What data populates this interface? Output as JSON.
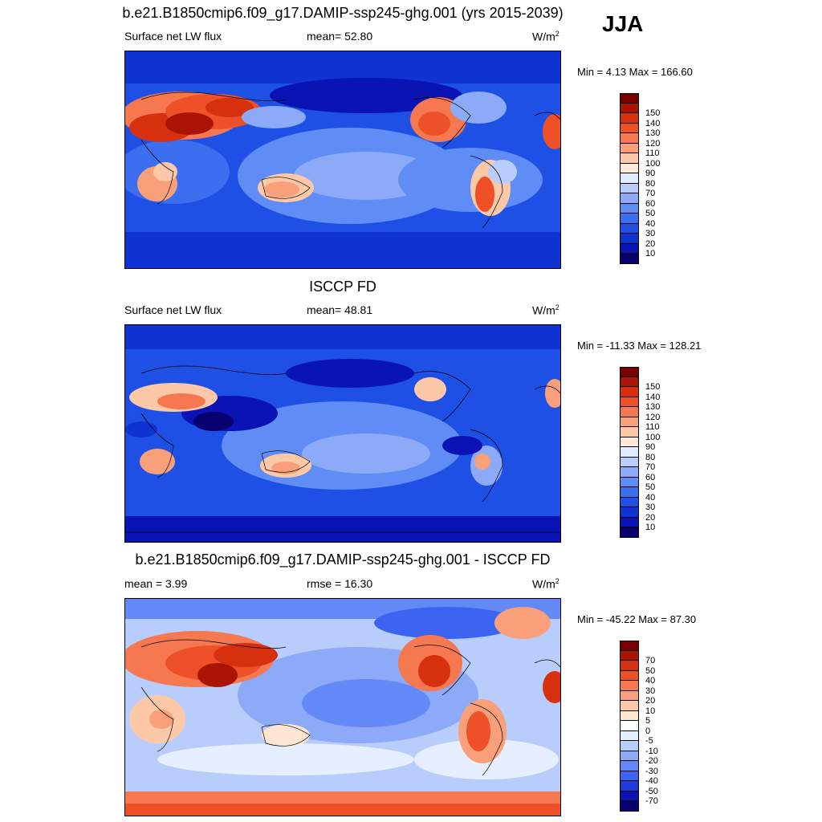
{
  "season": "JJA",
  "panels": [
    {
      "title": "b.e21.B1850cmip6.f09_g17.DAMIP-ssp245-ghg.001 (yrs 2015-2039)",
      "left_label": "Surface net LW flux",
      "mid_label": "mean=  52.80",
      "unit_base": "W/m",
      "unit_exp": "2",
      "minmax": "Min =   4.13 Max = 166.60",
      "colorbar": {
        "colors": [
          "#08006e",
          "#0a14b4",
          "#0f32d2",
          "#1e50e6",
          "#3c6ef0",
          "#5f8cf5",
          "#8caaf8",
          "#b9cdfc",
          "#e1ebff",
          "#ffebd7",
          "#fdc8a8",
          "#f9a07a",
          "#f57850",
          "#ee5028",
          "#d7300f",
          "#aa1404",
          "#7a0000"
        ],
        "ticks": [
          "10",
          "20",
          "30",
          "40",
          "50",
          "60",
          "70",
          "80",
          "90",
          "100",
          "110",
          "120",
          "130",
          "140",
          "150"
        ]
      }
    },
    {
      "title": "ISCCP FD",
      "left_label": "Surface net LW flux",
      "mid_label": "mean=  48.81",
      "unit_base": "W/m",
      "unit_exp": "2",
      "minmax": "Min = -11.33 Max = 128.21",
      "colorbar": {
        "colors": [
          "#08006e",
          "#0a14b4",
          "#0f32d2",
          "#1e50e6",
          "#3c6ef0",
          "#5f8cf5",
          "#8caaf8",
          "#b9cdfc",
          "#e1ebff",
          "#ffebd7",
          "#fdc8a8",
          "#f9a07a",
          "#f57850",
          "#ee5028",
          "#d7300f",
          "#aa1404",
          "#7a0000"
        ],
        "ticks": [
          "10",
          "20",
          "30",
          "40",
          "50",
          "60",
          "70",
          "80",
          "90",
          "100",
          "110",
          "120",
          "130",
          "140",
          "150"
        ]
      }
    },
    {
      "title": "b.e21.B1850cmip6.f09_g17.DAMIP-ssp245-ghg.001 - ISCCP FD",
      "left_label": "mean =   3.99",
      "mid_label": "rmse =  16.30",
      "unit_base": "W/m",
      "unit_exp": "2",
      "minmax": "Min = -45.22 Max =  87.30",
      "colorbar": {
        "colors": [
          "#08006e",
          "#0a14b4",
          "#1e3cdc",
          "#3c64f0",
          "#6488f5",
          "#8caaf8",
          "#b9cdfc",
          "#e6efff",
          "#ffffff",
          "#ffe6d2",
          "#fdc8a8",
          "#f9a07a",
          "#f57850",
          "#ee5028",
          "#d7300f",
          "#aa1404",
          "#7a0000"
        ],
        "ticks": [
          "-70",
          "-50",
          "-40",
          "-30",
          "-20",
          "-10",
          "-5",
          "0",
          "5",
          "10",
          "20",
          "30",
          "40",
          "50",
          "70"
        ]
      }
    }
  ]
}
